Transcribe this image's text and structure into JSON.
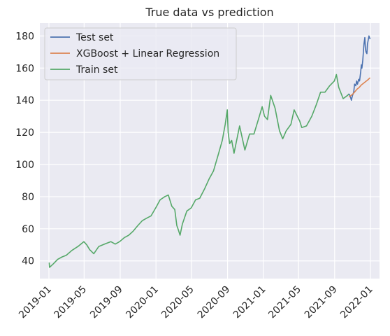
{
  "chart_data": {
    "type": "line",
    "title": "True data vs prediction",
    "xlabel": "",
    "ylabel": "",
    "x_range": [
      "2018-12-01",
      "2022-02-01"
    ],
    "y_range": [
      29,
      188
    ],
    "grid": true,
    "legend_position": "top-left",
    "x_ticks": [
      "2019-01",
      "2019-05",
      "2019-09",
      "2020-01",
      "2020-05",
      "2020-09",
      "2021-01",
      "2021-05",
      "2021-09",
      "2022-01"
    ],
    "y_ticks": [
      40,
      60,
      80,
      100,
      120,
      140,
      160,
      180
    ],
    "series": [
      {
        "name": "Test set",
        "color": "#4c72b0",
        "points": [
          [
            "2021-10-20",
            144
          ],
          [
            "2021-10-25",
            142
          ],
          [
            "2021-10-28",
            140
          ],
          [
            "2021-11-01",
            143
          ],
          [
            "2021-11-05",
            145
          ],
          [
            "2021-11-08",
            150
          ],
          [
            "2021-11-12",
            149
          ],
          [
            "2021-11-15",
            152
          ],
          [
            "2021-11-18",
            150
          ],
          [
            "2021-11-22",
            153
          ],
          [
            "2021-11-25",
            152
          ],
          [
            "2021-11-29",
            158
          ],
          [
            "2021-12-01",
            162
          ],
          [
            "2021-12-03",
            160
          ],
          [
            "2021-12-06",
            165
          ],
          [
            "2021-12-08",
            170
          ],
          [
            "2021-12-10",
            175
          ],
          [
            "2021-12-13",
            179
          ],
          [
            "2021-12-15",
            172
          ],
          [
            "2021-12-17",
            170
          ],
          [
            "2021-12-20",
            169
          ],
          [
            "2021-12-22",
            175
          ],
          [
            "2021-12-27",
            180
          ],
          [
            "2021-12-29",
            179
          ],
          [
            "2021-12-31",
            178
          ]
        ]
      },
      {
        "name": "XGBoost + Linear Regression",
        "color": "#dd8452",
        "points": [
          [
            "2021-10-20",
            142
          ],
          [
            "2021-10-27",
            143
          ],
          [
            "2021-11-03",
            144
          ],
          [
            "2021-11-10",
            145.5
          ],
          [
            "2021-11-17",
            147
          ],
          [
            "2021-11-24",
            148
          ],
          [
            "2021-12-01",
            149.5
          ],
          [
            "2021-12-08",
            150.5
          ],
          [
            "2021-12-15",
            151.5
          ],
          [
            "2021-12-22",
            152.5
          ],
          [
            "2021-12-31",
            154
          ]
        ]
      },
      {
        "name": "Train set",
        "color": "#55a868",
        "points": [
          [
            "2019-01-02",
            39
          ],
          [
            "2019-01-03",
            36
          ],
          [
            "2019-01-15",
            38
          ],
          [
            "2019-01-31",
            41
          ],
          [
            "2019-02-15",
            42.5
          ],
          [
            "2019-03-01",
            43.5
          ],
          [
            "2019-03-20",
            46.5
          ],
          [
            "2019-04-10",
            49
          ],
          [
            "2019-04-30",
            52
          ],
          [
            "2019-05-10",
            50
          ],
          [
            "2019-05-20",
            47
          ],
          [
            "2019-06-03",
            44.5
          ],
          [
            "2019-06-20",
            49
          ],
          [
            "2019-07-10",
            50.5
          ],
          [
            "2019-07-31",
            52
          ],
          [
            "2019-08-15",
            50.5
          ],
          [
            "2019-08-30",
            52
          ],
          [
            "2019-09-15",
            54.5
          ],
          [
            "2019-09-30",
            56
          ],
          [
            "2019-10-15",
            58.5
          ],
          [
            "2019-10-31",
            62
          ],
          [
            "2019-11-15",
            65
          ],
          [
            "2019-11-29",
            66.5
          ],
          [
            "2019-12-15",
            68
          ],
          [
            "2019-12-31",
            73
          ],
          [
            "2020-01-15",
            78
          ],
          [
            "2020-01-31",
            80
          ],
          [
            "2020-02-12",
            81
          ],
          [
            "2020-02-24",
            74
          ],
          [
            "2020-03-05",
            72
          ],
          [
            "2020-03-12",
            62
          ],
          [
            "2020-03-16",
            60
          ],
          [
            "2020-03-23",
            56
          ],
          [
            "2020-03-31",
            63
          ],
          [
            "2020-04-15",
            71
          ],
          [
            "2020-04-30",
            73
          ],
          [
            "2020-05-15",
            78
          ],
          [
            "2020-05-29",
            79
          ],
          [
            "2020-06-15",
            85
          ],
          [
            "2020-06-30",
            91
          ],
          [
            "2020-07-15",
            96
          ],
          [
            "2020-07-31",
            106
          ],
          [
            "2020-08-14",
            115
          ],
          [
            "2020-08-24",
            125
          ],
          [
            "2020-08-31",
            134
          ],
          [
            "2020-09-03",
            120
          ],
          [
            "2020-09-08",
            113
          ],
          [
            "2020-09-15",
            115
          ],
          [
            "2020-09-23",
            107
          ],
          [
            "2020-10-12",
            124
          ],
          [
            "2020-10-30",
            109
          ],
          [
            "2020-11-15",
            119
          ],
          [
            "2020-11-30",
            119
          ],
          [
            "2020-12-15",
            128
          ],
          [
            "2020-12-28",
            136
          ],
          [
            "2021-01-05",
            130
          ],
          [
            "2021-01-15",
            128
          ],
          [
            "2021-01-26",
            143
          ],
          [
            "2021-02-10",
            135
          ],
          [
            "2021-02-25",
            121
          ],
          [
            "2021-03-08",
            116
          ],
          [
            "2021-03-20",
            121
          ],
          [
            "2021-04-05",
            125
          ],
          [
            "2021-04-16",
            134
          ],
          [
            "2021-05-05",
            127
          ],
          [
            "2021-05-12",
            123
          ],
          [
            "2021-05-28",
            124
          ],
          [
            "2021-06-15",
            130
          ],
          [
            "2021-06-30",
            137
          ],
          [
            "2021-07-15",
            145
          ],
          [
            "2021-07-30",
            145
          ],
          [
            "2021-08-15",
            149
          ],
          [
            "2021-08-31",
            152
          ],
          [
            "2021-09-07",
            156
          ],
          [
            "2021-09-15",
            148
          ],
          [
            "2021-09-30",
            141
          ],
          [
            "2021-10-15",
            143
          ],
          [
            "2021-10-20",
            144
          ]
        ]
      }
    ]
  }
}
